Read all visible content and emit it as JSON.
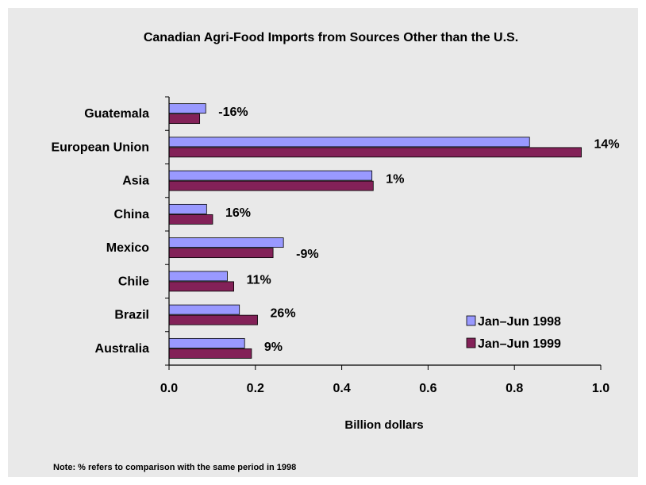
{
  "chart_data": {
    "type": "bar",
    "orientation": "horizontal",
    "title": "Canadian Agri-Food Imports from Sources Other than the U.S.",
    "xlabel": "Billion dollars",
    "ylabel": "",
    "xlim": [
      0,
      1.0
    ],
    "xticks": [
      "0.0",
      "0.2",
      "0.4",
      "0.6",
      "0.8",
      "1.0"
    ],
    "grid": false,
    "legend_position": "bottom-right",
    "categories": [
      "Guatemala",
      "European Union",
      "Asia",
      "China",
      "Mexico",
      "Chile",
      "Brazil",
      "Australia"
    ],
    "series": [
      {
        "name": "Jan–Jun 1998",
        "color": "#9999ff",
        "values": [
          0.085,
          0.835,
          0.47,
          0.087,
          0.265,
          0.135,
          0.163,
          0.175
        ]
      },
      {
        "name": "Jan–Jun 1999",
        "color": "#832158",
        "values": [
          0.071,
          0.955,
          0.473,
          0.101,
          0.241,
          0.15,
          0.205,
          0.191
        ]
      }
    ],
    "annotations": [
      "-16%",
      "14%",
      "1%",
      "16%",
      "-9%",
      "11%",
      "26%",
      "9%"
    ]
  },
  "note": "Note: % refers to comparison with the same period in 1998"
}
